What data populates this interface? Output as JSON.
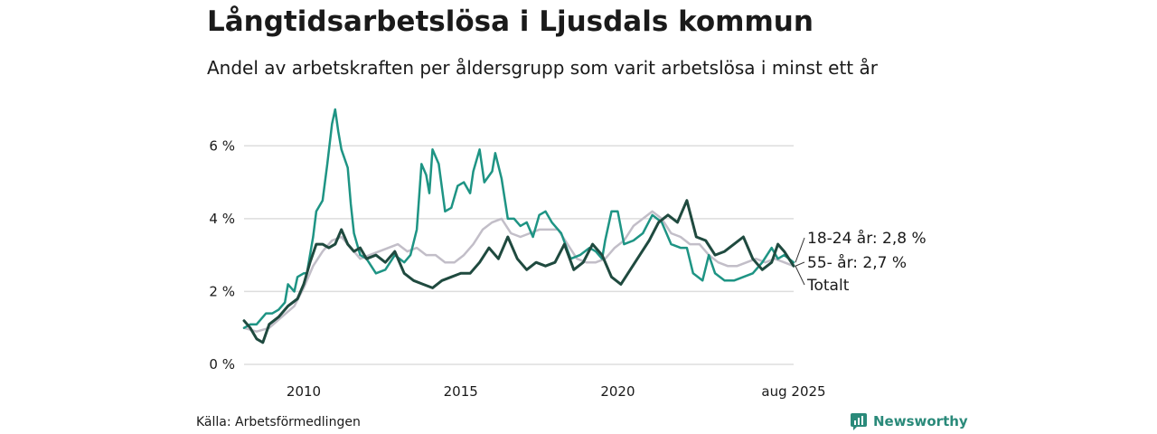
{
  "header": {
    "title": "Långtidsarbetslösa i Ljusdals kommun",
    "subtitle": "Andel av arbetskraften per åldersgrupp som varit arbetslösa i minst ett år"
  },
  "footer": {
    "source": "Källa: Arbetsförmedlingen",
    "brand": "Newsworthy"
  },
  "colors": {
    "age18_24": "#1e9484",
    "age55": "#1f4a3f",
    "total": "#c2bec8",
    "grid": "#dddddd"
  },
  "chart_data": {
    "type": "line",
    "x_unit": "year",
    "xlim": [
      2008.1,
      2025.6
    ],
    "ylim": [
      0,
      7
    ],
    "yticks": [
      0,
      2,
      4,
      6
    ],
    "ytick_labels": [
      "0 %",
      "2 %",
      "4 %",
      "6 %"
    ],
    "xticks": [
      2010,
      2015,
      2020,
      2025.6
    ],
    "xtick_labels": [
      "2010",
      "2015",
      "2020",
      "aug 2025"
    ],
    "grid": true,
    "series": [
      {
        "key": "age18_24",
        "label": "18-24 år: 2,8 %",
        "x": [
          2008.1,
          2008.3,
          2008.5,
          2008.8,
          2009.0,
          2009.2,
          2009.4,
          2009.5,
          2009.7,
          2009.8,
          2010.0,
          2010.1,
          2010.3,
          2010.4,
          2010.6,
          2010.75,
          2010.9,
          2011.0,
          2011.1,
          2011.2,
          2011.4,
          2011.5,
          2011.6,
          2011.8,
          2012.0,
          2012.3,
          2012.6,
          2012.9,
          2013.2,
          2013.4,
          2013.6,
          2013.75,
          2013.9,
          2014.0,
          2014.1,
          2014.3,
          2014.5,
          2014.7,
          2014.9,
          2015.1,
          2015.3,
          2015.4,
          2015.6,
          2015.75,
          2016.0,
          2016.1,
          2016.3,
          2016.5,
          2016.7,
          2016.9,
          2017.1,
          2017.3,
          2017.5,
          2017.7,
          2017.9,
          2018.2,
          2018.5,
          2018.8,
          2019.1,
          2019.3,
          2019.5,
          2019.6,
          2019.8,
          2020.0,
          2020.2,
          2020.5,
          2020.8,
          2021.1,
          2021.4,
          2021.7,
          2022.0,
          2022.2,
          2022.4,
          2022.7,
          2022.9,
          2023.1,
          2023.4,
          2023.7,
          2024.0,
          2024.3,
          2024.6,
          2024.9,
          2025.1,
          2025.3,
          2025.6
        ],
        "y": [
          1.0,
          1.1,
          1.1,
          1.4,
          1.4,
          1.5,
          1.7,
          2.2,
          2.0,
          2.4,
          2.5,
          2.5,
          3.5,
          4.2,
          4.5,
          5.5,
          6.6,
          7.0,
          6.4,
          5.9,
          5.4,
          4.4,
          3.6,
          3.0,
          2.9,
          2.5,
          2.6,
          3.0,
          2.8,
          3.0,
          3.7,
          5.5,
          5.2,
          4.7,
          5.9,
          5.5,
          4.2,
          4.3,
          4.9,
          5.0,
          4.7,
          5.3,
          5.9,
          5.0,
          5.3,
          5.8,
          5.1,
          4.0,
          4.0,
          3.8,
          3.9,
          3.5,
          4.1,
          4.2,
          3.9,
          3.6,
          2.9,
          3.0,
          3.2,
          3.1,
          2.9,
          3.4,
          4.2,
          4.2,
          3.3,
          3.4,
          3.6,
          4.1,
          3.9,
          3.3,
          3.2,
          3.2,
          2.5,
          2.3,
          3.0,
          2.5,
          2.3,
          2.3,
          2.4,
          2.5,
          2.8,
          3.2,
          2.9,
          3.0,
          2.8
        ]
      },
      {
        "key": "age55",
        "label": "55- år: 2,7 %",
        "x": [
          2008.1,
          2008.3,
          2008.5,
          2008.7,
          2008.9,
          2009.2,
          2009.5,
          2009.8,
          2010.0,
          2010.2,
          2010.4,
          2010.6,
          2010.8,
          2011.0,
          2011.2,
          2011.4,
          2011.6,
          2011.8,
          2012.0,
          2012.3,
          2012.6,
          2012.9,
          2013.2,
          2013.5,
          2013.8,
          2014.1,
          2014.4,
          2014.7,
          2015.0,
          2015.3,
          2015.6,
          2015.9,
          2016.2,
          2016.5,
          2016.8,
          2017.1,
          2017.4,
          2017.7,
          2018.0,
          2018.3,
          2018.6,
          2018.9,
          2019.2,
          2019.5,
          2019.8,
          2020.1,
          2020.4,
          2020.7,
          2021.0,
          2021.3,
          2021.6,
          2021.9,
          2022.2,
          2022.5,
          2022.8,
          2023.1,
          2023.4,
          2023.7,
          2024.0,
          2024.3,
          2024.6,
          2024.9,
          2025.1,
          2025.3,
          2025.6
        ],
        "y": [
          1.2,
          1.0,
          0.7,
          0.6,
          1.1,
          1.3,
          1.6,
          1.8,
          2.2,
          2.8,
          3.3,
          3.3,
          3.2,
          3.3,
          3.7,
          3.3,
          3.1,
          3.2,
          2.9,
          3.0,
          2.8,
          3.1,
          2.5,
          2.3,
          2.2,
          2.1,
          2.3,
          2.4,
          2.5,
          2.5,
          2.8,
          3.2,
          2.9,
          3.5,
          2.9,
          2.6,
          2.8,
          2.7,
          2.8,
          3.3,
          2.6,
          2.8,
          3.3,
          3.0,
          2.4,
          2.2,
          2.6,
          3.0,
          3.4,
          3.9,
          4.1,
          3.9,
          4.5,
          3.5,
          3.4,
          3.0,
          3.1,
          3.3,
          3.5,
          2.9,
          2.6,
          2.8,
          3.3,
          3.1,
          2.7
        ]
      },
      {
        "key": "total",
        "label": "Totalt",
        "x": [
          2008.1,
          2008.5,
          2008.9,
          2009.3,
          2009.7,
          2010.0,
          2010.3,
          2010.6,
          2010.9,
          2011.2,
          2011.5,
          2011.8,
          2012.1,
          2012.4,
          2012.7,
          2013.0,
          2013.3,
          2013.6,
          2013.9,
          2014.2,
          2014.5,
          2014.8,
          2015.1,
          2015.4,
          2015.7,
          2016.0,
          2016.3,
          2016.6,
          2016.9,
          2017.2,
          2017.5,
          2017.8,
          2018.1,
          2018.4,
          2018.7,
          2019.0,
          2019.3,
          2019.6,
          2019.9,
          2020.2,
          2020.5,
          2020.8,
          2021.1,
          2021.4,
          2021.7,
          2022.0,
          2022.3,
          2022.6,
          2022.9,
          2023.2,
          2023.5,
          2023.8,
          2024.1,
          2024.4,
          2024.7,
          2025.0,
          2025.3,
          2025.6
        ],
        "y": [
          1.0,
          0.9,
          1.0,
          1.3,
          1.6,
          2.1,
          2.7,
          3.1,
          3.4,
          3.5,
          3.2,
          2.9,
          3.0,
          3.1,
          3.2,
          3.3,
          3.1,
          3.2,
          3.0,
          3.0,
          2.8,
          2.8,
          3.0,
          3.3,
          3.7,
          3.9,
          4.0,
          3.6,
          3.5,
          3.6,
          3.7,
          3.7,
          3.7,
          3.3,
          2.9,
          2.8,
          2.8,
          2.9,
          3.2,
          3.4,
          3.8,
          4.0,
          4.2,
          4.0,
          3.6,
          3.5,
          3.3,
          3.3,
          3.0,
          2.8,
          2.7,
          2.7,
          2.8,
          2.9,
          2.8,
          2.9,
          2.8,
          2.7
        ]
      }
    ]
  }
}
